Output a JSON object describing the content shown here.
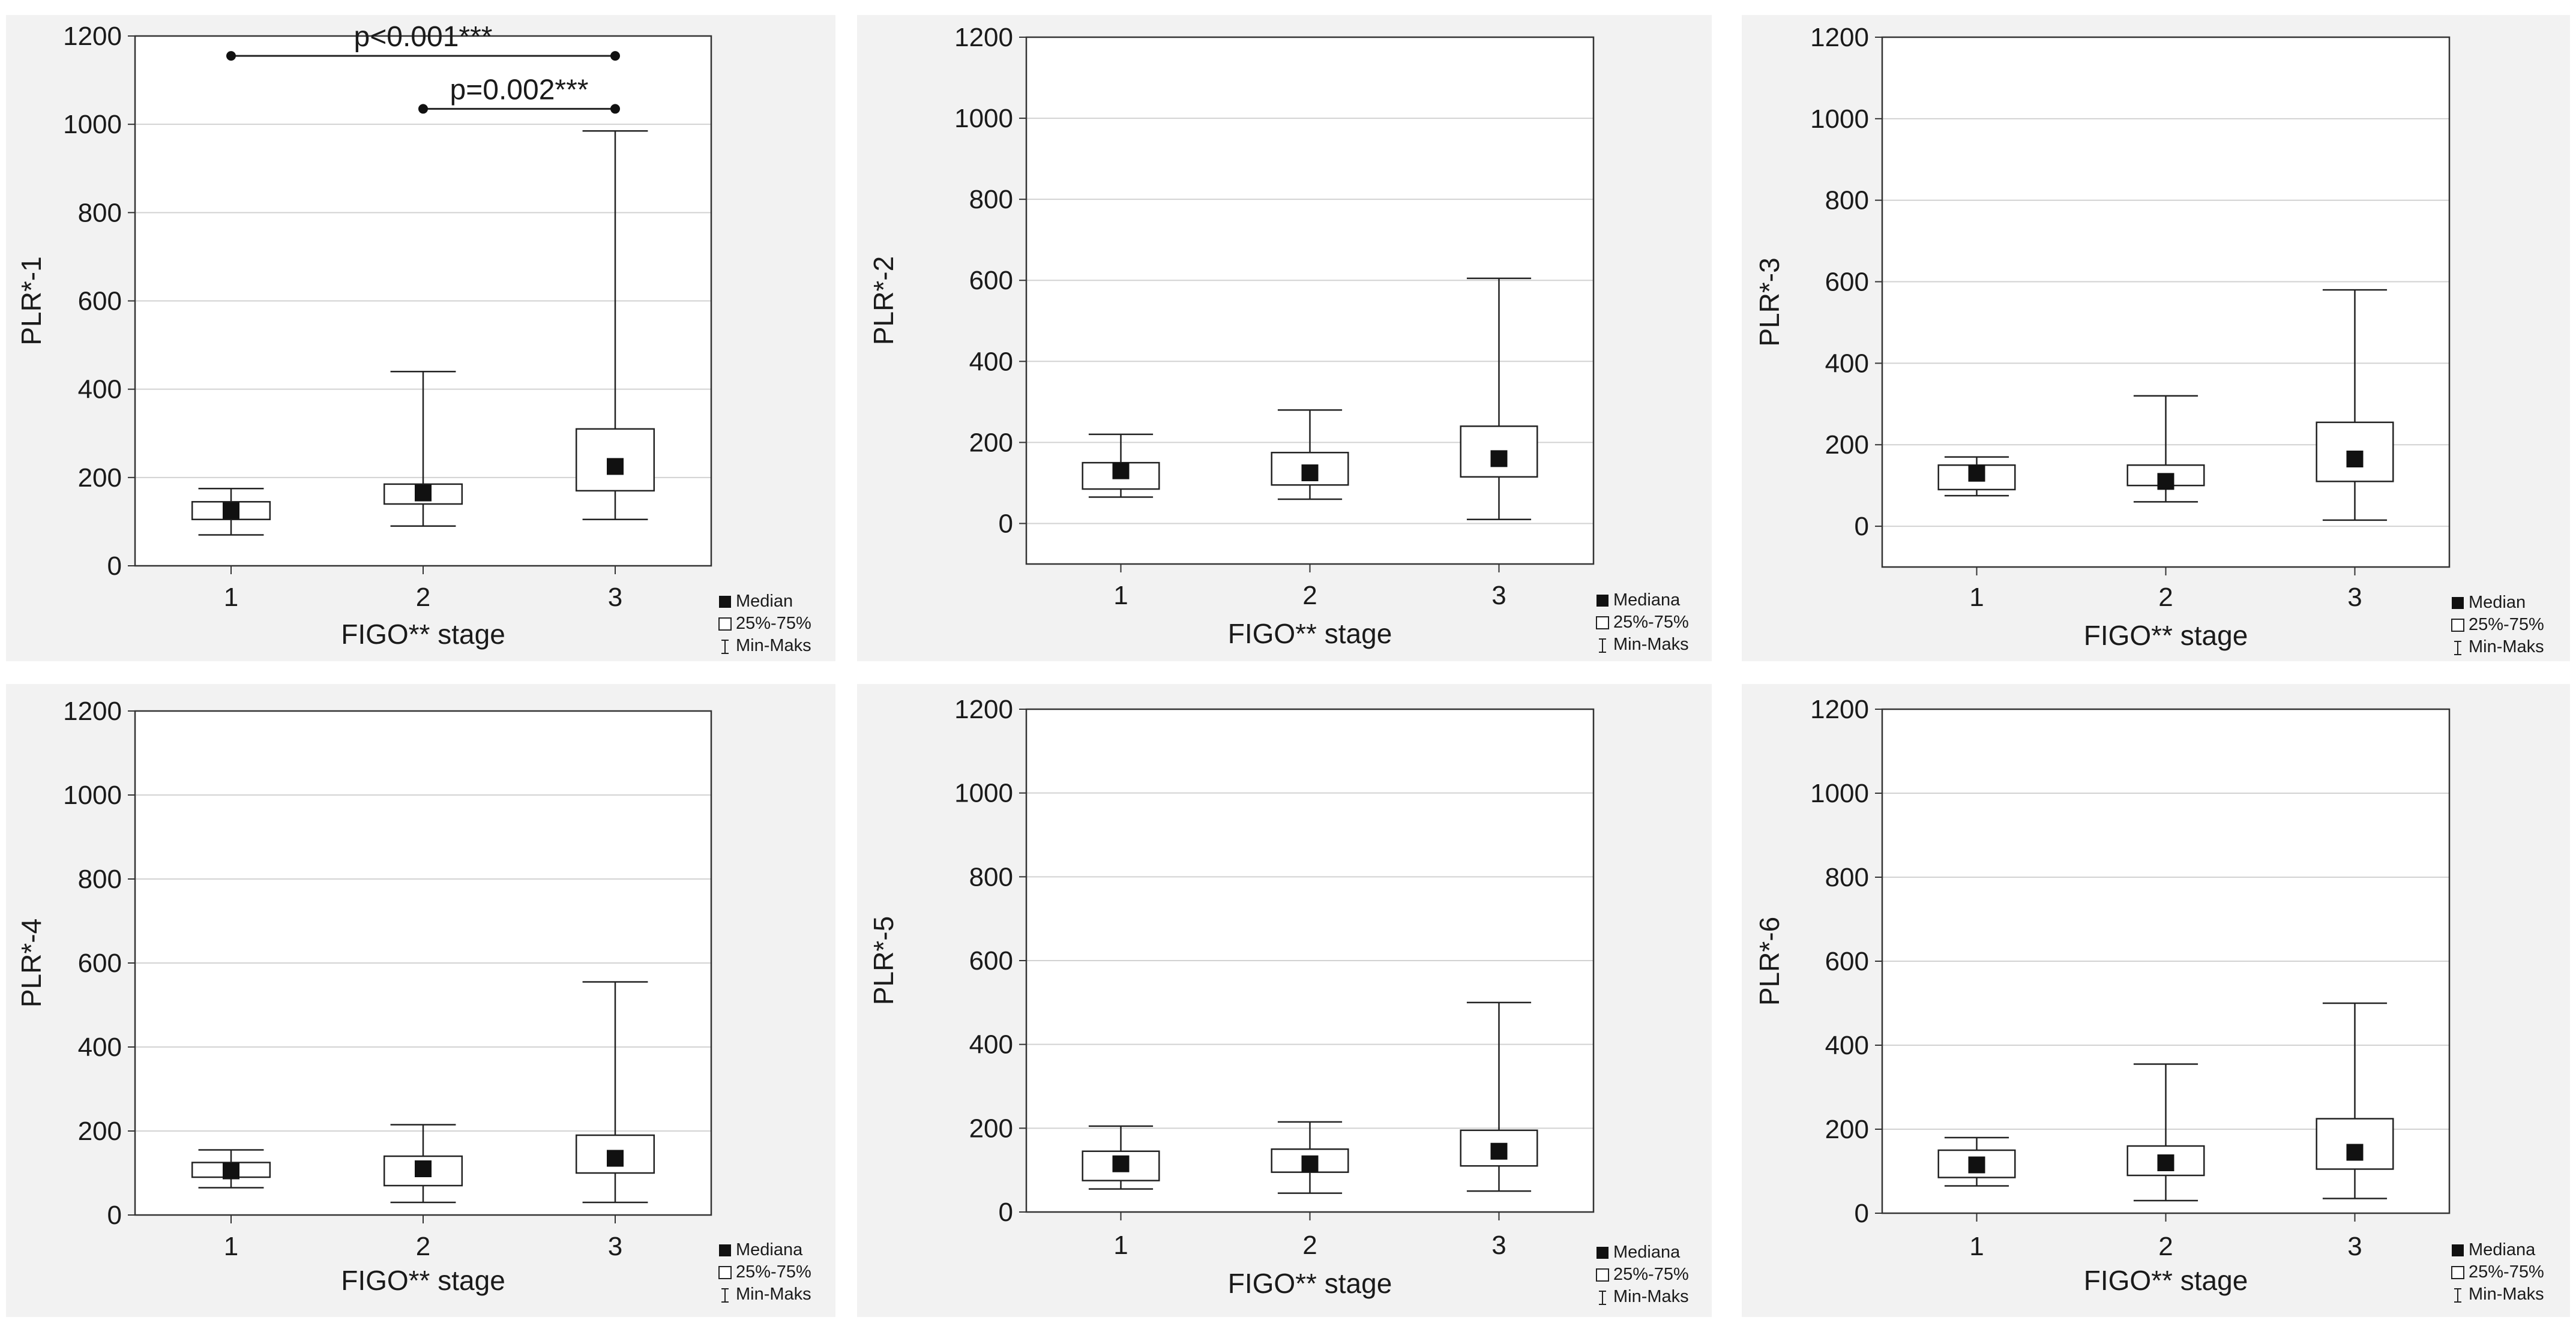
{
  "chart_data": [
    {
      "type": "box",
      "xlabel": "FIGO** stage",
      "ylabel": "PLR*-1",
      "ylim": [
        0,
        1200
      ],
      "yticks": [
        0,
        200,
        400,
        600,
        800,
        1000,
        1200
      ],
      "categories": [
        "1",
        "2",
        "3"
      ],
      "boxes": [
        {
          "min": 70,
          "q1": 105,
          "median": 125,
          "q3": 145,
          "max": 175
        },
        {
          "min": 90,
          "q1": 140,
          "median": 165,
          "q3": 185,
          "max": 440
        },
        {
          "min": 105,
          "q1": 170,
          "median": 225,
          "q3": 310,
          "max": 985
        }
      ],
      "legend": [
        "Median",
        "25%-75%",
        "Min-Maks"
      ],
      "annotations": [
        {
          "text": "p<0.001***",
          "from": "1",
          "to": "3",
          "y": 1155
        },
        {
          "text": "p=0.002***",
          "from": "2",
          "to": "3",
          "y": 1035
        }
      ]
    },
    {
      "type": "box",
      "xlabel": "FIGO** stage",
      "ylabel": "PLR*-2",
      "ylim": [
        -100,
        1200
      ],
      "yticks": [
        0,
        200,
        400,
        600,
        800,
        1000,
        1200
      ],
      "categories": [
        "1",
        "2",
        "3"
      ],
      "boxes": [
        {
          "min": 65,
          "q1": 85,
          "median": 130,
          "q3": 150,
          "max": 220
        },
        {
          "min": 60,
          "q1": 95,
          "median": 125,
          "q3": 175,
          "max": 280
        },
        {
          "min": 10,
          "q1": 115,
          "median": 160,
          "q3": 240,
          "max": 605
        }
      ],
      "legend": [
        "Mediana",
        "25%-75%",
        "Min-Maks"
      ],
      "annotations": []
    },
    {
      "type": "box",
      "xlabel": "FIGO** stage",
      "ylabel": "PLR*-3",
      "ylim": [
        -100,
        1200
      ],
      "yticks": [
        0,
        200,
        400,
        600,
        800,
        1000,
        1200
      ],
      "categories": [
        "1",
        "2",
        "3"
      ],
      "boxes": [
        {
          "min": 75,
          "q1": 90,
          "median": 130,
          "q3": 150,
          "max": 170
        },
        {
          "min": 60,
          "q1": 100,
          "median": 110,
          "q3": 150,
          "max": 320
        },
        {
          "min": 15,
          "q1": 110,
          "median": 165,
          "q3": 255,
          "max": 580
        }
      ],
      "legend": [
        "Median",
        "25%-75%",
        "Min-Maks"
      ],
      "annotations": []
    },
    {
      "type": "box",
      "xlabel": "FIGO** stage",
      "ylabel": "PLR*-4",
      "ylim": [
        0,
        1200
      ],
      "yticks": [
        0,
        200,
        400,
        600,
        800,
        1000,
        1200
      ],
      "categories": [
        "1",
        "2",
        "3"
      ],
      "boxes": [
        {
          "min": 65,
          "q1": 90,
          "median": 105,
          "q3": 125,
          "max": 155
        },
        {
          "min": 30,
          "q1": 70,
          "median": 110,
          "q3": 140,
          "max": 215
        },
        {
          "min": 30,
          "q1": 100,
          "median": 135,
          "q3": 190,
          "max": 555
        }
      ],
      "legend": [
        "Mediana",
        "25%-75%",
        "Min-Maks"
      ],
      "annotations": []
    },
    {
      "type": "box",
      "xlabel": "FIGO** stage",
      "ylabel": "PLR*-5",
      "ylim": [
        0,
        1200
      ],
      "yticks": [
        0,
        200,
        400,
        600,
        800,
        1000,
        1200
      ],
      "categories": [
        "1",
        "2",
        "3"
      ],
      "boxes": [
        {
          "min": 55,
          "q1": 75,
          "median": 115,
          "q3": 145,
          "max": 205
        },
        {
          "min": 45,
          "q1": 95,
          "median": 115,
          "q3": 150,
          "max": 215
        },
        {
          "min": 50,
          "q1": 110,
          "median": 145,
          "q3": 195,
          "max": 500
        }
      ],
      "legend": [
        "Mediana",
        "25%-75%",
        "Min-Maks"
      ],
      "annotations": []
    },
    {
      "type": "box",
      "xlabel": "FIGO** stage",
      "ylabel": "PLR*-6",
      "ylim": [
        0,
        1200
      ],
      "yticks": [
        0,
        200,
        400,
        600,
        800,
        1000,
        1200
      ],
      "categories": [
        "1",
        "2",
        "3"
      ],
      "boxes": [
        {
          "min": 65,
          "q1": 85,
          "median": 115,
          "q3": 150,
          "max": 180
        },
        {
          "min": 30,
          "q1": 90,
          "median": 120,
          "q3": 160,
          "max": 355
        },
        {
          "min": 35,
          "q1": 105,
          "median": 145,
          "q3": 225,
          "max": 500
        }
      ],
      "legend": [
        "Mediana",
        "25%-75%",
        "Min-Maks"
      ],
      "annotations": []
    }
  ]
}
